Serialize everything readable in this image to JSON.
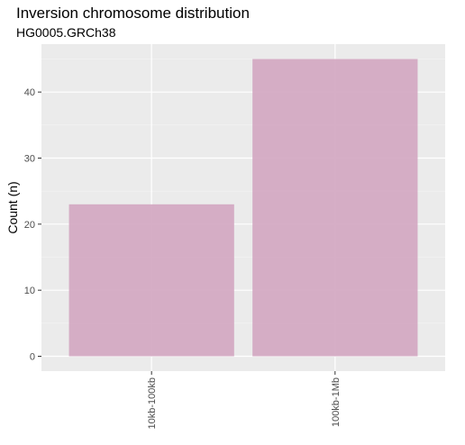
{
  "chart_data": {
    "type": "bar",
    "title": "Inversion chromosome distribution",
    "subtitle": "HG0005.GRCh38",
    "xlabel": "",
    "ylabel": "Count (n)",
    "categories": [
      "10kb-100kb",
      "100kb-1Mb"
    ],
    "values": [
      23,
      45
    ],
    "ylim": [
      -2.25,
      47.25
    ],
    "yticks": [
      0,
      10,
      20,
      30,
      40
    ],
    "ytick_labels": [
      "0",
      "10",
      "20",
      "30",
      "40"
    ],
    "grid": true,
    "legend": "none",
    "x_tick_label_rotation": "vertical",
    "colors": {
      "bar_fill": "#d4aac3",
      "panel_background": "#ebebeb",
      "grid_major": "#ffffff",
      "grid_minor": "#f5f5f5",
      "tick_text": "#4d4d4d"
    }
  }
}
